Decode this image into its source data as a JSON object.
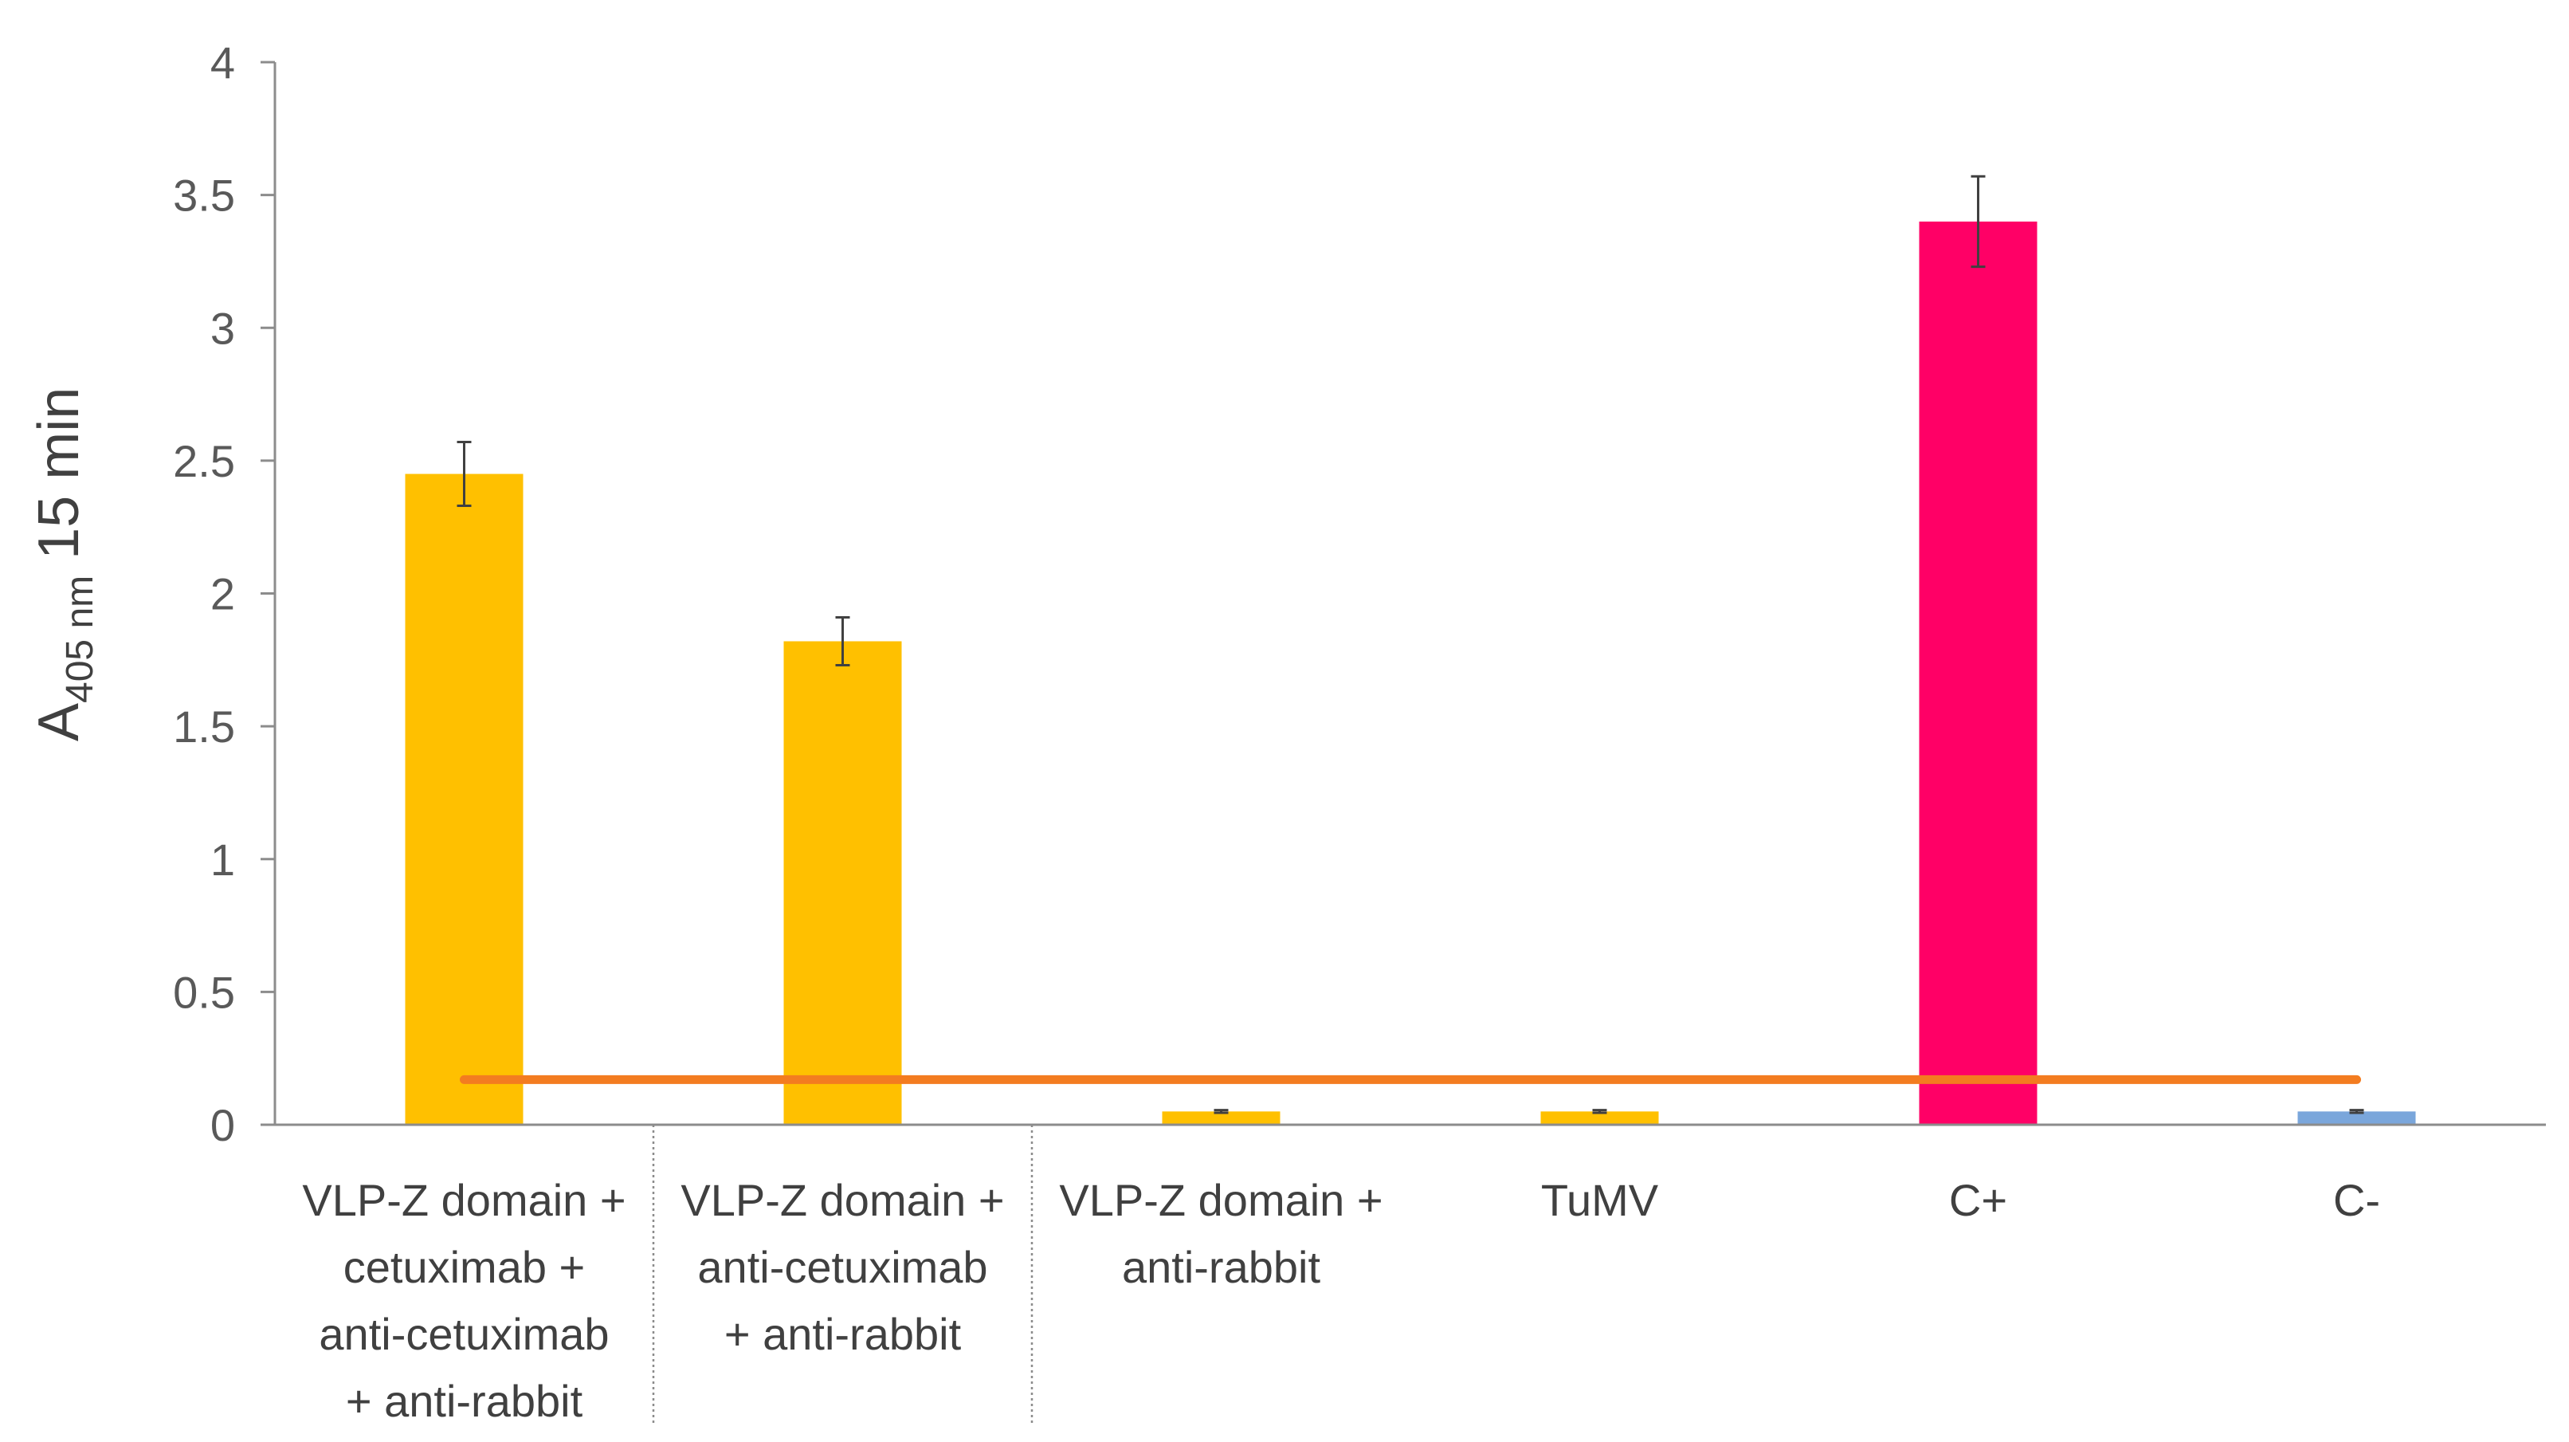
{
  "chart_data": {
    "type": "bar",
    "ylabel_main": "A",
    "ylabel_sub": "405 nm",
    "ylabel_suffix": " 15 min",
    "ylim": [
      0,
      4
    ],
    "yticks": [
      "0",
      "0.5",
      "1",
      "1.5",
      "2",
      "2.5",
      "3",
      "3.5",
      "4"
    ],
    "grid": false,
    "categories": [
      [
        "VLP-Z domain +",
        "cetuximab +",
        "anti-cetuximab",
        "+ anti-rabbit"
      ],
      [
        "VLP-Z domain +",
        "anti-cetuximab",
        "+ anti-rabbit"
      ],
      [
        "VLP-Z domain +",
        "anti-rabbit"
      ],
      [
        "TuMV"
      ],
      [
        "C+"
      ],
      [
        "C-"
      ]
    ],
    "values": [
      2.45,
      1.82,
      0.05,
      0.05,
      3.4,
      0.05
    ],
    "errors": [
      0.12,
      0.09,
      0.005,
      0.005,
      0.17,
      0.005
    ],
    "colors": [
      "#FFC000",
      "#FFC000",
      "#FFC000",
      "#FFC000",
      "#FF0066",
      "#7AA6DB"
    ],
    "threshold": {
      "value": 0.17,
      "color": "#F37C20"
    },
    "group_dividers": 2
  }
}
